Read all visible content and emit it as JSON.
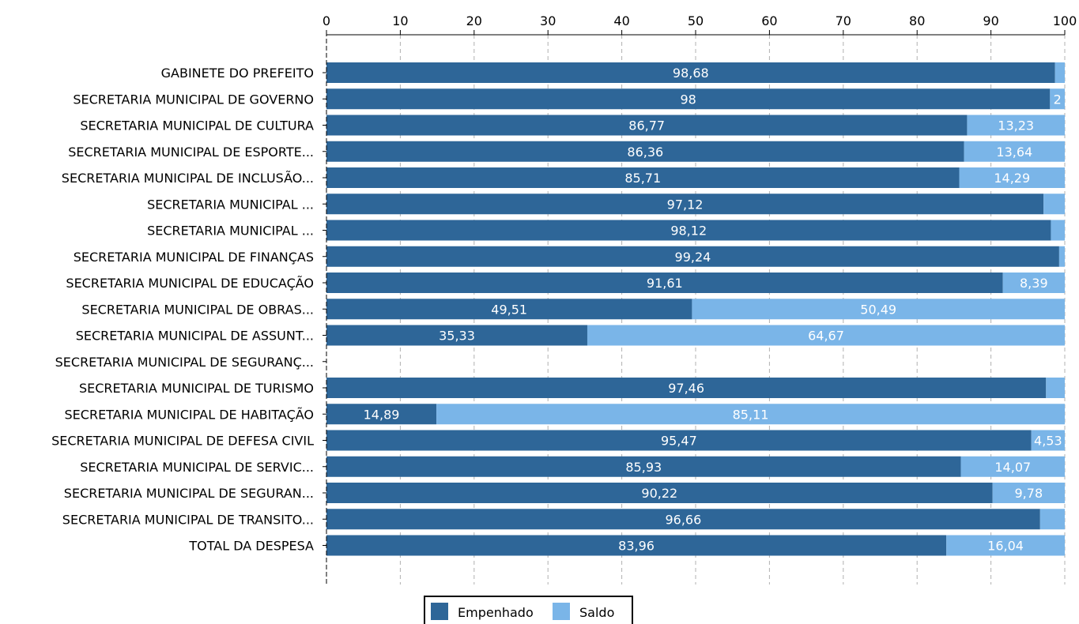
{
  "chart_data": {
    "type": "bar",
    "orientation": "horizontal",
    "stacked": true,
    "xlim": [
      0,
      100
    ],
    "x_ticks": [
      0,
      10,
      20,
      30,
      40,
      50,
      60,
      70,
      80,
      90,
      100
    ],
    "x_axis_position": "top",
    "grid": "vertical dashed",
    "legend_position": "bottom-center",
    "categories": [
      "GABINETE DO PREFEITO",
      "SECRETARIA MUNICIPAL DE GOVERNO",
      "SECRETARIA MUNICIPAL DE CULTURA",
      "SECRETARIA MUNICIPAL DE ESPORTE...",
      "SECRETARIA MUNICIPAL DE INCLUSÃO...",
      "SECRETARIA MUNICIPAL ...",
      "SECRETARIA MUNICIPAL ...",
      "SECRETARIA MUNICIPAL DE FINANÇAS",
      "SECRETARIA MUNICIPAL DE EDUCAÇÃO",
      "SECRETARIA MUNICIPAL DE OBRAS...",
      "SECRETARIA MUNICIPAL DE ASSUNT...",
      "SECRETARIA MUNICIPAL DE SEGURANÇ...",
      "SECRETARIA MUNICIPAL DE TURISMO",
      "SECRETARIA MUNICIPAL DE HABITAÇÃO",
      "SECRETARIA MUNICIPAL DE DEFESA CIVIL",
      "SECRETARIA MUNICIPAL DE SERVIC...",
      "SECRETARIA MUNICIPAL DE SEGURAN...",
      "SECRETARIA MUNICIPAL DE TRANSITO...",
      "TOTAL DA DESPESA"
    ],
    "series": [
      {
        "name": "Empenhado",
        "color": "#2e6698",
        "values": [
          98.68,
          98,
          86.77,
          86.36,
          85.71,
          97.12,
          98.12,
          99.24,
          91.61,
          49.51,
          35.33,
          0,
          97.46,
          14.89,
          95.47,
          85.93,
          90.22,
          96.66,
          83.96
        ],
        "labels": [
          "98,68",
          "98",
          "86,77",
          "86,36",
          "85,71",
          "97,12",
          "98,12",
          "99,24",
          "91,61",
          "49,51",
          "35,33",
          "",
          "97,46",
          "14,89",
          "95,47",
          "85,93",
          "90,22",
          "96,66",
          "83,96"
        ]
      },
      {
        "name": "Saldo",
        "color": "#7ab5e8",
        "values": [
          1.32,
          2,
          13.23,
          13.64,
          14.29,
          2.88,
          1.88,
          0.76,
          8.39,
          50.49,
          64.67,
          0,
          2.54,
          85.11,
          4.53,
          14.07,
          9.78,
          3.34,
          16.04
        ],
        "labels": [
          "",
          "2",
          "13,23",
          "13,64",
          "14,29",
          "",
          "",
          "",
          "8,39",
          "50,49",
          "64,67",
          "",
          "",
          "85,11",
          "4,53",
          "14,07",
          "9,78",
          "",
          "16,04"
        ]
      }
    ]
  }
}
